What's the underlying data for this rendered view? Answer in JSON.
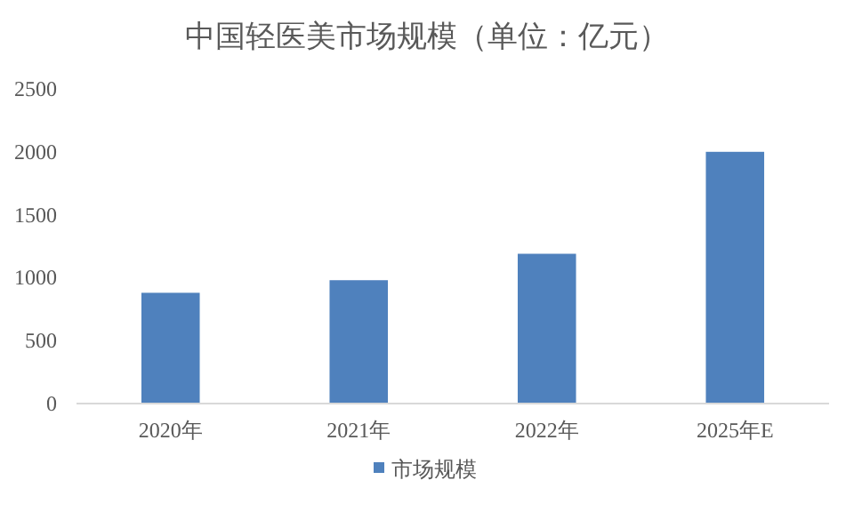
{
  "chart_data": {
    "type": "bar",
    "title": "中国轻医美市场规模（单位：亿元）",
    "categories": [
      "2020年",
      "2021年",
      "2022年",
      "2025年E"
    ],
    "series": [
      {
        "name": "市场规模",
        "color": "#4f81bd",
        "values": [
          880,
          980,
          1190,
          2000
        ]
      }
    ],
    "ylim": [
      0,
      2500
    ],
    "yticks": [
      0,
      500,
      1000,
      1500,
      2000,
      2500
    ],
    "grid": false,
    "legend": "bottom"
  }
}
